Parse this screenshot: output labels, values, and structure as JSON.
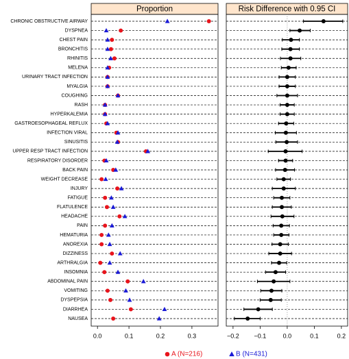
{
  "chart_data": [
    {
      "type": "dot",
      "title": "Proportion",
      "categories": [
        "CHRONIC OBSTRUCTIVE AIRWAY",
        "DYSPNEA",
        "CHEST PAIN",
        "BRONCHITIS",
        "RHINITIS",
        "MELENA",
        "URINARY TRACT INFECTION",
        "MYALGIA",
        "COUGHING",
        "RASH",
        "HYPERKALEMIA",
        "GASTROESOPHAGEAL REFLUX",
        "INFECTION VIRAL",
        "SINUSITIS",
        "UPPER RESP TRACT INFECTION",
        "RESPIRATORY DISORDER",
        "BACK PAIN",
        "WEIGHT DECREASE",
        "INJURY",
        "FATIGUE",
        "FLATULENCE",
        "HEADACHE",
        "PAIN",
        "HEMATURIA",
        "ANOREXIA",
        "DIZZINESS",
        "ARTHRALGIA",
        "INSOMNIA",
        "ABDOMINAL PAIN",
        "VOMITING",
        "DYSPEPSIA",
        "DIARRHEA",
        "NAUSEA"
      ],
      "series": [
        {
          "name": "A (N=216)",
          "color": "#e8141c",
          "marker": "circle",
          "values": [
            0.354,
            0.074,
            0.046,
            0.043,
            0.054,
            0.037,
            0.032,
            0.032,
            0.065,
            0.024,
            0.024,
            0.028,
            0.06,
            0.065,
            0.154,
            0.022,
            0.05,
            0.013,
            0.063,
            0.024,
            0.03,
            0.07,
            0.024,
            0.013,
            0.013,
            0.046,
            0.009,
            0.022,
            0.096,
            0.032,
            0.041,
            0.106,
            0.05
          ]
        },
        {
          "name": "B (N=431)",
          "color": "#1a1ad6",
          "marker": "triangle",
          "values": [
            0.222,
            0.028,
            0.032,
            0.032,
            0.042,
            0.032,
            0.032,
            0.032,
            0.065,
            0.024,
            0.024,
            0.032,
            0.065,
            0.063,
            0.16,
            0.028,
            0.058,
            0.026,
            0.076,
            0.044,
            0.05,
            0.087,
            0.046,
            0.035,
            0.039,
            0.072,
            0.039,
            0.065,
            0.146,
            0.09,
            0.102,
            0.213,
            0.196
          ]
        }
      ],
      "xlim": [
        -0.02,
        0.383
      ],
      "xticks": [
        {
          "value": 0,
          "label": "0.0"
        },
        0.1,
        0.2,
        0.3
      ]
    },
    {
      "type": "interval",
      "title": "Risk Difference with 0.95 CI",
      "values": [
        0.134,
        0.046,
        0.014,
        0.012,
        0.012,
        0.005,
        0,
        0,
        0,
        0,
        0,
        -0.004,
        -0.005,
        -0.002,
        -0.006,
        -0.006,
        -0.008,
        -0.013,
        -0.013,
        -0.02,
        -0.02,
        -0.018,
        -0.022,
        -0.022,
        -0.026,
        -0.026,
        -0.03,
        -0.043,
        -0.05,
        -0.058,
        -0.061,
        -0.107,
        -0.146
      ],
      "lower": [
        0.06,
        0.01,
        -0.018,
        -0.02,
        -0.025,
        -0.022,
        -0.03,
        -0.03,
        -0.038,
        -0.026,
        -0.026,
        -0.032,
        -0.044,
        -0.042,
        -0.07,
        -0.032,
        -0.043,
        -0.038,
        -0.055,
        -0.05,
        -0.055,
        -0.06,
        -0.052,
        -0.05,
        -0.056,
        -0.068,
        -0.058,
        -0.08,
        -0.11,
        -0.098,
        -0.1,
        -0.16,
        -0.195
      ],
      "upper": [
        0.205,
        0.085,
        0.045,
        0.045,
        0.05,
        0.033,
        0.03,
        0.03,
        0.038,
        0.026,
        0.026,
        0.024,
        0.034,
        0.038,
        0.055,
        0.02,
        0.027,
        0.012,
        0.03,
        0.01,
        0.015,
        0.025,
        0.008,
        0.006,
        0.004,
        0.016,
        -0.002,
        -0.006,
        0.01,
        -0.02,
        -0.022,
        -0.055,
        -0.1
      ],
      "xlim": [
        -0.225,
        0.223
      ],
      "xticks": [
        {
          "value": -0.2,
          "label": "−0.2"
        },
        {
          "value": -0.1,
          "label": "−0.1"
        },
        {
          "value": 0,
          "label": "0.0"
        },
        0.1,
        0.2
      ],
      "reference_line": 0
    }
  ]
}
